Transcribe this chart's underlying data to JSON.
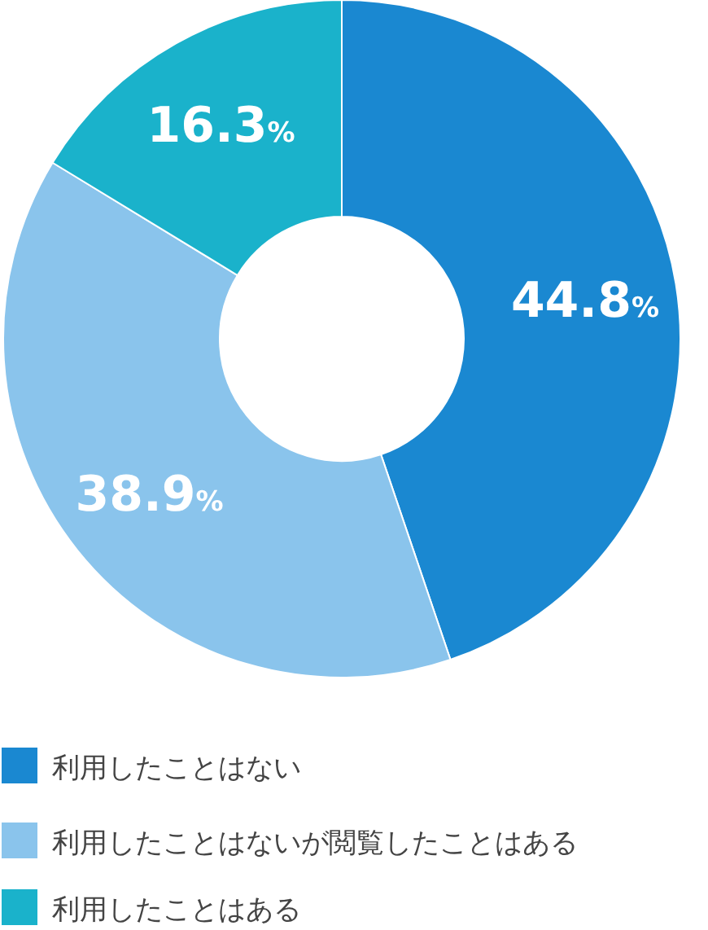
{
  "chart_data": {
    "type": "donut",
    "categories": [
      "利用したことはない",
      "利用したことはないが閲覧したことはある",
      "利用したことはある"
    ],
    "values": [
      44.8,
      38.9,
      16.3
    ],
    "colors": [
      "#1a88d1",
      "#8ac4ec",
      "#1ab2cb"
    ],
    "value_labels": [
      "44.8%",
      "38.9%",
      "16.3%"
    ],
    "legend": "bottom"
  }
}
